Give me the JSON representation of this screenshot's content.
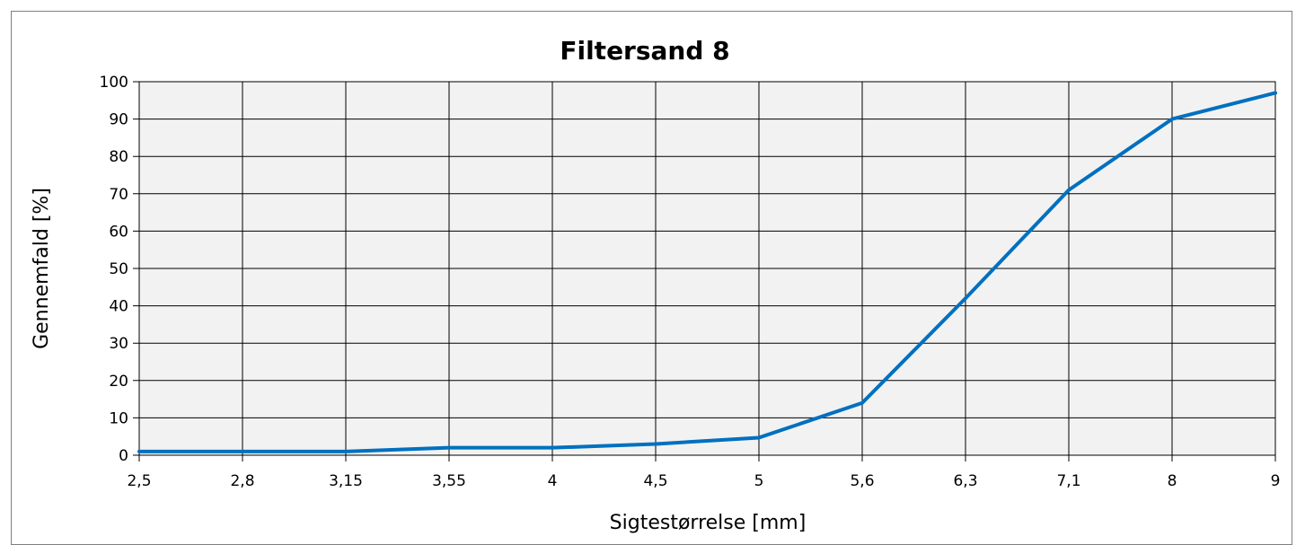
{
  "chart_data": {
    "type": "line",
    "title": "Filtersand 8",
    "xlabel": "Sigtestørrelse [mm]",
    "ylabel": "Gennemfald [%]",
    "categories": [
      "2,5",
      "2,8",
      "3,15",
      "3,55",
      "4",
      "4,5",
      "5",
      "5,6",
      "6,3",
      "7,1",
      "8",
      "9"
    ],
    "ylim": [
      0,
      100
    ],
    "yticks": [
      0,
      10,
      20,
      30,
      40,
      50,
      60,
      70,
      80,
      90,
      100
    ],
    "grid": true,
    "series": [
      {
        "values": [
          1,
          1,
          1,
          2,
          2,
          3,
          4.7,
          14,
          42,
          71,
          90,
          97
        ],
        "color": "#0070c0"
      }
    ],
    "plot_background": "#f2f2f2",
    "grid_color": "#000000"
  }
}
